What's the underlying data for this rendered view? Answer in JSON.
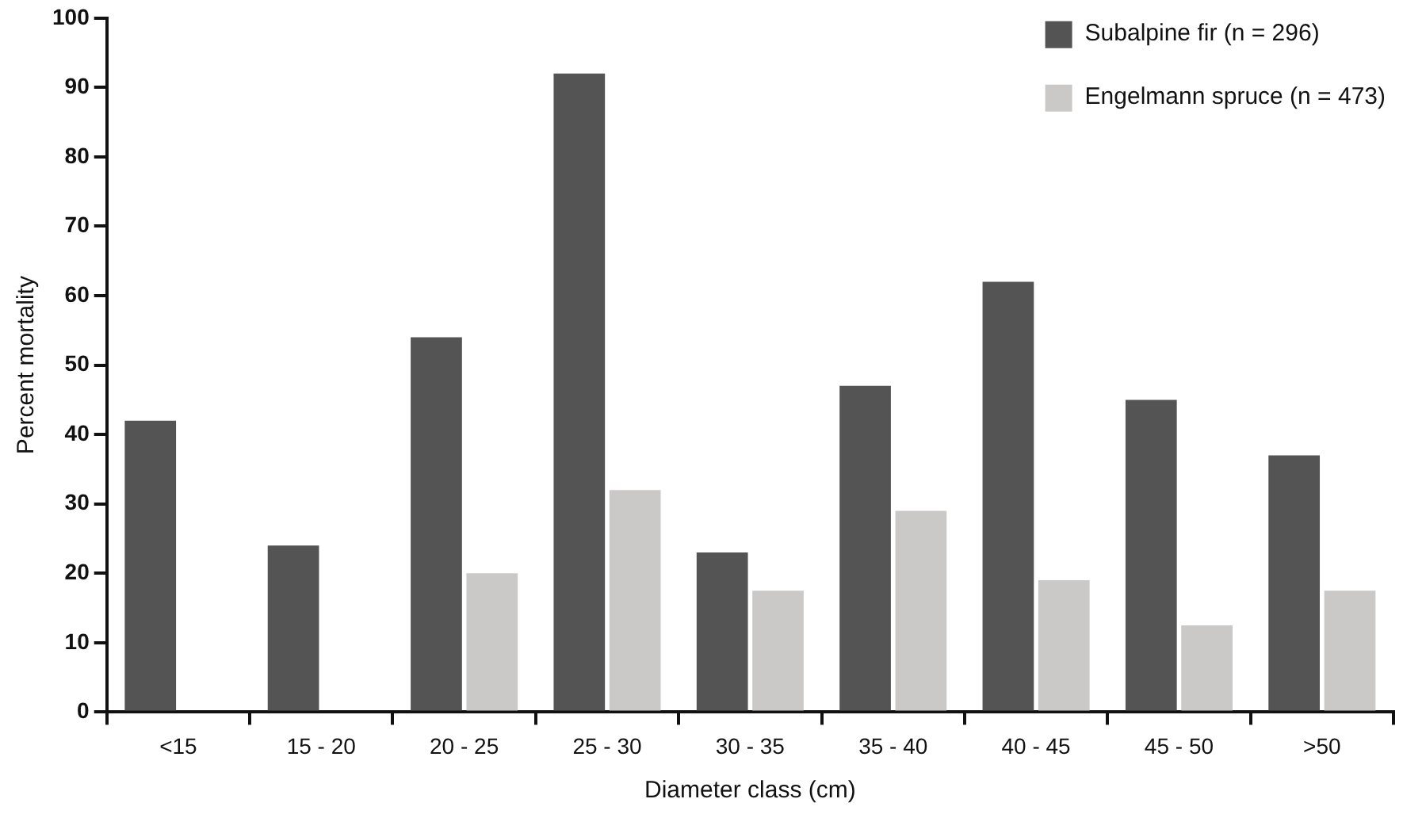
{
  "chart_data": {
    "type": "bar",
    "xlabel": "Diameter class (cm)",
    "ylabel": "Percent mortality",
    "categories": [
      "<15",
      "15 - 20",
      "20 - 25",
      "25 - 30",
      "30 - 35",
      "35 - 40",
      "40 - 45",
      "45 - 50",
      ">50"
    ],
    "series": [
      {
        "name": "Subalpine fir (n = 296)",
        "color": "#545454",
        "values": [
          42,
          24,
          54,
          92,
          23,
          47,
          62,
          45,
          37
        ]
      },
      {
        "name": "Engelmann spruce (n = 473)",
        "color": "#cbc8c8",
        "values": [
          null,
          null,
          20,
          32,
          17.5,
          29,
          19,
          12.5,
          17.5
        ]
      }
    ],
    "ylim": [
      0,
      100
    ],
    "yticks": [
      0,
      10,
      20,
      30,
      40,
      50,
      60,
      70,
      80,
      90,
      100
    ],
    "grid": false,
    "legend": "top right"
  }
}
